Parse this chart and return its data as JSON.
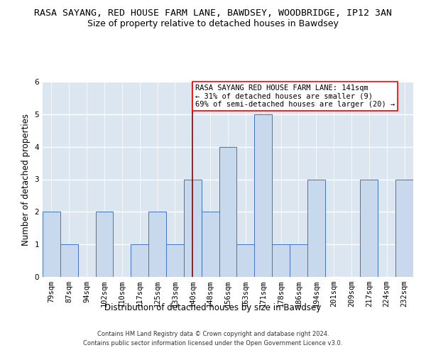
{
  "title": "RASA SAYANG, RED HOUSE FARM LANE, BAWDSEY, WOODBRIDGE, IP12 3AN",
  "subtitle": "Size of property relative to detached houses in Bawdsey",
  "xlabel": "Distribution of detached houses by size in Bawdsey",
  "ylabel": "Number of detached properties",
  "footer_line1": "Contains HM Land Registry data © Crown copyright and database right 2024.",
  "footer_line2": "Contains public sector information licensed under the Open Government Licence v3.0.",
  "annotation_text": "RASA SAYANG RED HOUSE FARM LANE: 141sqm\n← 31% of detached houses are smaller (9)\n69% of semi-detached houses are larger (20) →",
  "bar_labels": [
    "79sqm",
    "87sqm",
    "94sqm",
    "102sqm",
    "110sqm",
    "117sqm",
    "125sqm",
    "133sqm",
    "140sqm",
    "148sqm",
    "156sqm",
    "163sqm",
    "171sqm",
    "178sqm",
    "186sqm",
    "194sqm",
    "201sqm",
    "209sqm",
    "217sqm",
    "224sqm",
    "232sqm"
  ],
  "bar_values": [
    2,
    1,
    0,
    2,
    0,
    1,
    2,
    1,
    3,
    2,
    4,
    1,
    5,
    1,
    1,
    3,
    0,
    0,
    3,
    0,
    3
  ],
  "bar_color": "#c9d9ed",
  "bar_edge_color": "#4472c4",
  "vline_color": "#8b0000",
  "vline_x_index": 8,
  "ylim": [
    0,
    6
  ],
  "yticks": [
    0,
    1,
    2,
    3,
    4,
    5,
    6
  ],
  "bg_color": "#dce6f1",
  "grid_color": "#ffffff",
  "title_fontsize": 9.5,
  "subtitle_fontsize": 9,
  "axis_label_fontsize": 8.5,
  "tick_fontsize": 7.5,
  "annotation_fontsize": 7.5,
  "footer_fontsize": 6.0
}
